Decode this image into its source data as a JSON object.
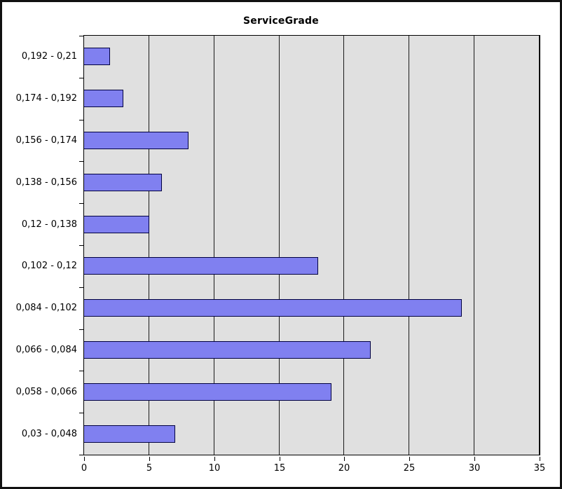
{
  "chart_data": {
    "type": "bar",
    "orientation": "horizontal",
    "title": "ServiceGrade",
    "categories": [
      "0,192 - 0,21",
      "0,174 - 0,192",
      "0,156 - 0,174",
      "0,138 - 0,156",
      "0,12 - 0,138",
      "0,102 - 0,12",
      "0,084 - 0,102",
      "0,066 - 0,084",
      "0,058 - 0,066",
      "0,03 - 0,048"
    ],
    "values": [
      2,
      3,
      8,
      6,
      5,
      18,
      29,
      22,
      19,
      7
    ],
    "xlim": [
      0,
      35
    ],
    "xticks": [
      0,
      5,
      10,
      15,
      20,
      25,
      30,
      35
    ],
    "grid": true,
    "legend": null,
    "colors": {
      "bar_fill": "#8080f0",
      "bar_border": "#000040",
      "plot_bg": "#e0e0e0",
      "grid_line": "#1a1a1a",
      "text": "#000000",
      "frame": "#111111",
      "background": "#ffffff"
    }
  }
}
